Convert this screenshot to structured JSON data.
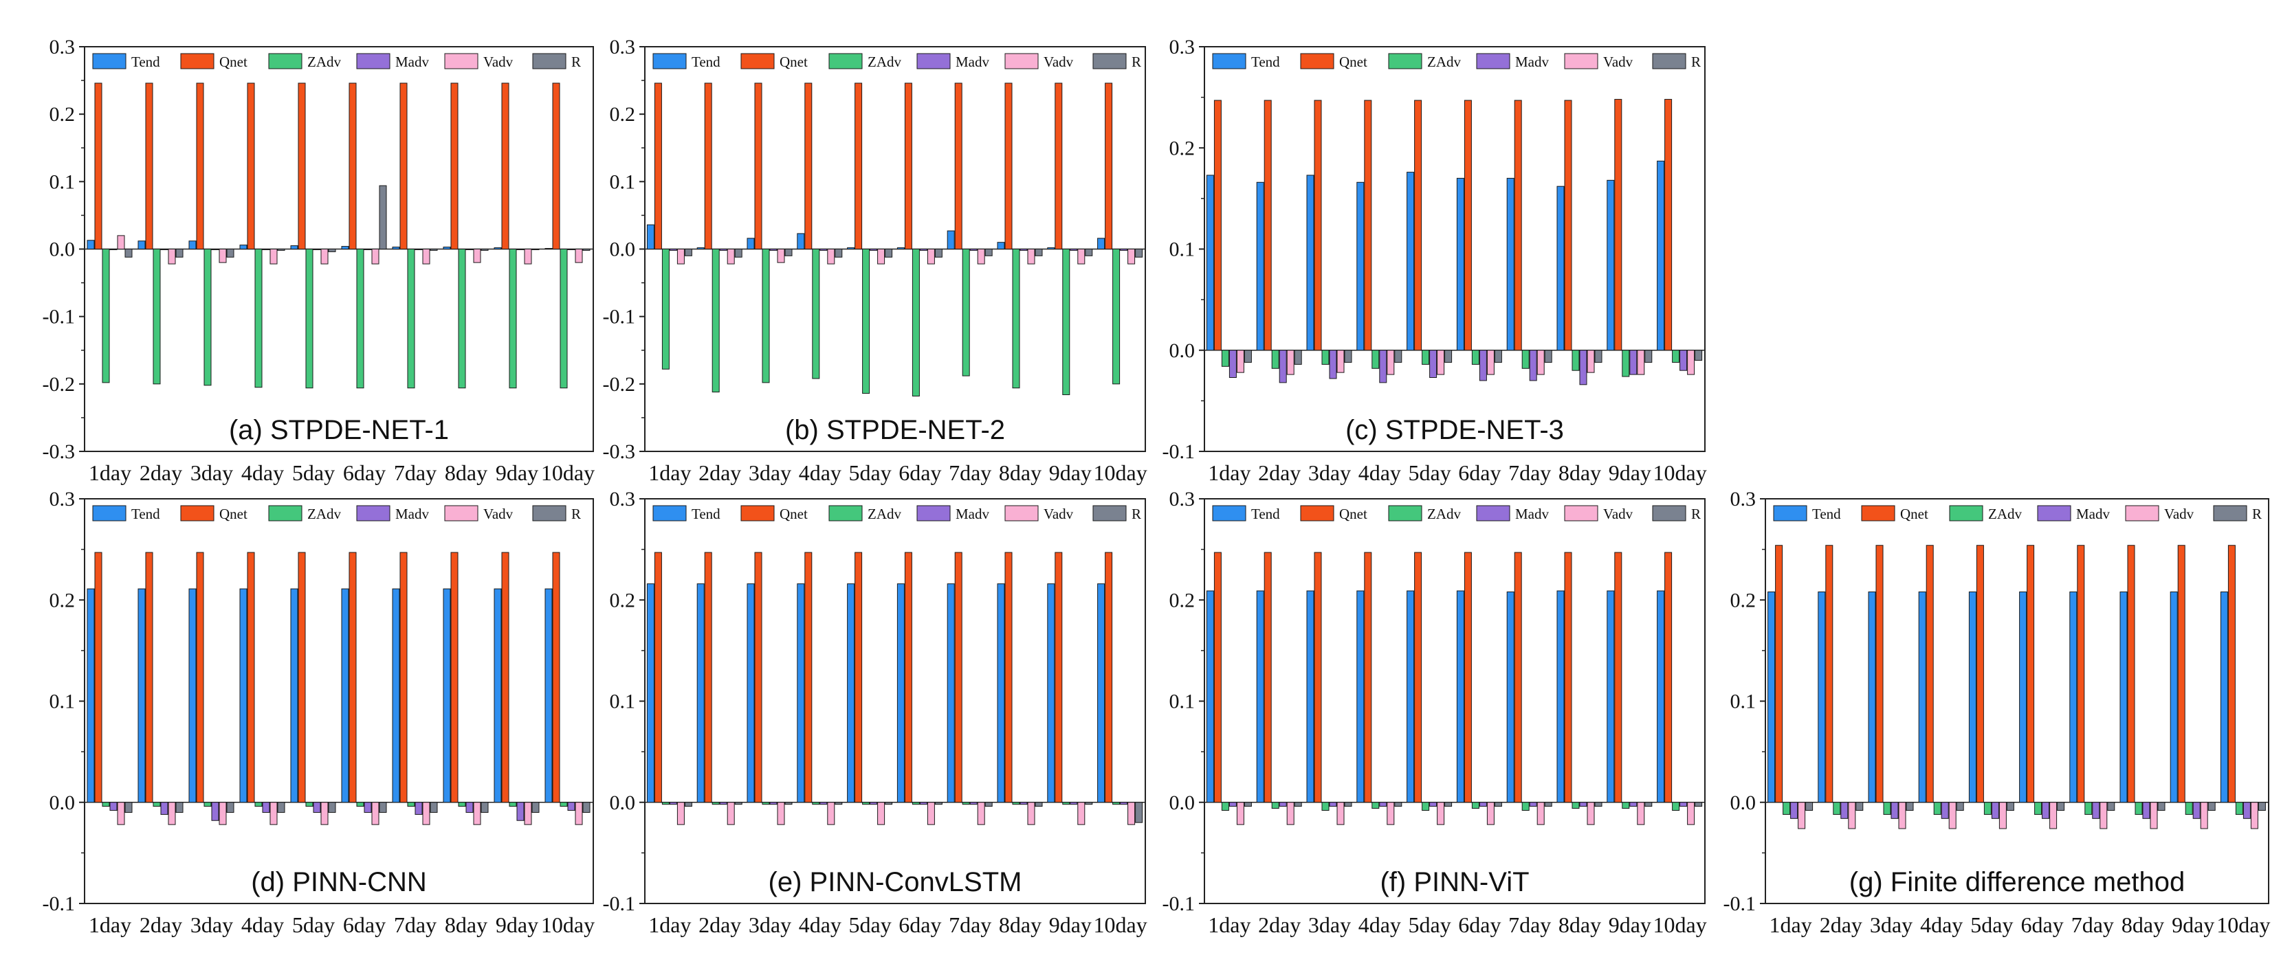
{
  "series_names": [
    "Tend",
    "Qnet",
    "ZAdv",
    "Madv",
    "Vadv",
    "R"
  ],
  "colors": {
    "Tend": "#2f8ff0",
    "Qnet": "#f2521a",
    "ZAdv": "#44c77c",
    "Madv": "#9470d8",
    "Vadv": "#f9b0d3",
    "R": "#7a8290"
  },
  "chart_data": [
    {
      "type": "bar",
      "title": "(a) STPDE-NET-1",
      "categories": [
        "1day",
        "2day",
        "3day",
        "4day",
        "5day",
        "6day",
        "7day",
        "8day",
        "9day",
        "10day"
      ],
      "ylim": [
        -0.3,
        0.3
      ],
      "yticks": [
        "-0.3",
        "-0.2",
        "-0.1",
        "0.0",
        "0.1",
        "0.2",
        "0.3"
      ],
      "series": [
        {
          "name": "Tend",
          "values": [
            0.013,
            0.012,
            0.012,
            0.006,
            0.005,
            0.004,
            0.003,
            0.003,
            0.002,
            0.001
          ]
        },
        {
          "name": "Qnet",
          "values": [
            0.246,
            0.246,
            0.246,
            0.246,
            0.246,
            0.246,
            0.246,
            0.246,
            0.246,
            0.246
          ]
        },
        {
          "name": "ZAdv",
          "values": [
            -0.198,
            -0.2,
            -0.202,
            -0.205,
            -0.206,
            -0.206,
            -0.206,
            -0.206,
            -0.206,
            -0.206
          ]
        },
        {
          "name": "Madv",
          "values": [
            -0.001,
            -0.001,
            -0.001,
            -0.001,
            -0.001,
            -0.001,
            -0.001,
            -0.001,
            -0.001,
            -0.001
          ]
        },
        {
          "name": "Vadv",
          "values": [
            0.02,
            -0.022,
            -0.02,
            -0.022,
            -0.022,
            -0.022,
            -0.022,
            -0.02,
            -0.022,
            -0.02
          ]
        },
        {
          "name": "R",
          "values": [
            -0.012,
            -0.012,
            -0.012,
            -0.002,
            -0.004,
            0.094,
            -0.002,
            -0.002,
            -0.001,
            -0.002
          ]
        }
      ]
    },
    {
      "type": "bar",
      "title": "(b) STPDE-NET-2",
      "categories": [
        "1day",
        "2day",
        "3day",
        "4day",
        "5day",
        "6day",
        "7day",
        "8day",
        "9day",
        "10day"
      ],
      "ylim": [
        -0.3,
        0.3
      ],
      "yticks": [
        "-0.3",
        "-0.2",
        "-0.1",
        "0.0",
        "0.1",
        "0.2",
        "0.3"
      ],
      "series": [
        {
          "name": "Tend",
          "values": [
            0.036,
            0.002,
            0.016,
            0.023,
            0.002,
            0.002,
            0.027,
            0.01,
            0.002,
            0.016
          ]
        },
        {
          "name": "Qnet",
          "values": [
            0.246,
            0.246,
            0.246,
            0.246,
            0.246,
            0.246,
            0.246,
            0.246,
            0.246,
            0.246
          ]
        },
        {
          "name": "ZAdv",
          "values": [
            -0.178,
            -0.212,
            -0.198,
            -0.192,
            -0.214,
            -0.218,
            -0.188,
            -0.206,
            -0.216,
            -0.2
          ]
        },
        {
          "name": "Madv",
          "values": [
            -0.002,
            -0.002,
            -0.002,
            -0.002,
            -0.002,
            -0.002,
            -0.002,
            -0.002,
            -0.002,
            -0.002
          ]
        },
        {
          "name": "Vadv",
          "values": [
            -0.022,
            -0.022,
            -0.02,
            -0.022,
            -0.022,
            -0.022,
            -0.022,
            -0.022,
            -0.022,
            -0.022
          ]
        },
        {
          "name": "R",
          "values": [
            -0.01,
            -0.012,
            -0.01,
            -0.012,
            -0.012,
            -0.012,
            -0.01,
            -0.01,
            -0.01,
            -0.012
          ]
        }
      ]
    },
    {
      "type": "bar",
      "title": "(c) STPDE-NET-3",
      "categories": [
        "1day",
        "2day",
        "3day",
        "4day",
        "5day",
        "6day",
        "7day",
        "8day",
        "9day",
        "10day"
      ],
      "ylim": [
        -0.1,
        0.3
      ],
      "yticks": [
        "-0.1",
        "0.0",
        "0.1",
        "0.2",
        "0.3"
      ],
      "series": [
        {
          "name": "Tend",
          "values": [
            0.173,
            0.166,
            0.173,
            0.166,
            0.176,
            0.17,
            0.17,
            0.162,
            0.168,
            0.187
          ]
        },
        {
          "name": "Qnet",
          "values": [
            0.247,
            0.247,
            0.247,
            0.247,
            0.247,
            0.247,
            0.247,
            0.247,
            0.248,
            0.248
          ]
        },
        {
          "name": "ZAdv",
          "values": [
            -0.016,
            -0.018,
            -0.014,
            -0.018,
            -0.014,
            -0.014,
            -0.018,
            -0.02,
            -0.026,
            -0.012
          ]
        },
        {
          "name": "Madv",
          "values": [
            -0.027,
            -0.032,
            -0.028,
            -0.032,
            -0.027,
            -0.03,
            -0.03,
            -0.034,
            -0.024,
            -0.02
          ]
        },
        {
          "name": "Vadv",
          "values": [
            -0.022,
            -0.024,
            -0.022,
            -0.024,
            -0.024,
            -0.024,
            -0.024,
            -0.022,
            -0.024,
            -0.024
          ]
        },
        {
          "name": "R",
          "values": [
            -0.012,
            -0.014,
            -0.012,
            -0.012,
            -0.012,
            -0.012,
            -0.012,
            -0.012,
            -0.012,
            -0.01
          ]
        }
      ]
    },
    {
      "type": "bar",
      "title": "(d) PINN-CNN",
      "categories": [
        "1day",
        "2day",
        "3day",
        "4day",
        "5day",
        "6day",
        "7day",
        "8day",
        "9day",
        "10day"
      ],
      "ylim": [
        -0.1,
        0.3
      ],
      "yticks": [
        "-0.1",
        "0.0",
        "0.1",
        "0.2",
        "0.3"
      ],
      "series": [
        {
          "name": "Tend",
          "values": [
            0.211,
            0.211,
            0.211,
            0.211,
            0.211,
            0.211,
            0.211,
            0.211,
            0.211,
            0.211
          ]
        },
        {
          "name": "Qnet",
          "values": [
            0.247,
            0.247,
            0.247,
            0.247,
            0.247,
            0.247,
            0.247,
            0.247,
            0.247,
            0.247
          ]
        },
        {
          "name": "ZAdv",
          "values": [
            -0.004,
            -0.004,
            -0.004,
            -0.004,
            -0.004,
            -0.004,
            -0.004,
            -0.004,
            -0.004,
            -0.004
          ]
        },
        {
          "name": "Madv",
          "values": [
            -0.008,
            -0.012,
            -0.018,
            -0.01,
            -0.01,
            -0.01,
            -0.012,
            -0.01,
            -0.018,
            -0.008
          ]
        },
        {
          "name": "Vadv",
          "values": [
            -0.022,
            -0.022,
            -0.022,
            -0.022,
            -0.022,
            -0.022,
            -0.022,
            -0.022,
            -0.022,
            -0.022
          ]
        },
        {
          "name": "R",
          "values": [
            -0.01,
            -0.01,
            -0.01,
            -0.01,
            -0.01,
            -0.01,
            -0.01,
            -0.01,
            -0.01,
            -0.01
          ]
        }
      ]
    },
    {
      "type": "bar",
      "title": "(e) PINN-ConvLSTM",
      "categories": [
        "1day",
        "2day",
        "3day",
        "4day",
        "5day",
        "6day",
        "7day",
        "8day",
        "9day",
        "10day"
      ],
      "ylim": [
        -0.1,
        0.3
      ],
      "yticks": [
        "-0.1",
        "0.0",
        "0.1",
        "0.2",
        "0.3"
      ],
      "series": [
        {
          "name": "Tend",
          "values": [
            0.216,
            0.216,
            0.216,
            0.216,
            0.216,
            0.216,
            0.216,
            0.216,
            0.216,
            0.216
          ]
        },
        {
          "name": "Qnet",
          "values": [
            0.247,
            0.247,
            0.247,
            0.247,
            0.247,
            0.247,
            0.247,
            0.247,
            0.247,
            0.247
          ]
        },
        {
          "name": "ZAdv",
          "values": [
            -0.002,
            -0.002,
            -0.002,
            -0.002,
            -0.002,
            -0.002,
            -0.002,
            -0.002,
            -0.002,
            -0.002
          ]
        },
        {
          "name": "Madv",
          "values": [
            -0.002,
            -0.002,
            -0.002,
            -0.002,
            -0.002,
            -0.002,
            -0.002,
            -0.002,
            -0.002,
            -0.002
          ]
        },
        {
          "name": "Vadv",
          "values": [
            -0.022,
            -0.022,
            -0.022,
            -0.022,
            -0.022,
            -0.022,
            -0.022,
            -0.022,
            -0.022,
            -0.022
          ]
        },
        {
          "name": "R",
          "values": [
            -0.004,
            -0.002,
            -0.002,
            -0.002,
            -0.002,
            -0.002,
            -0.004,
            -0.004,
            -0.002,
            -0.02
          ]
        }
      ]
    },
    {
      "type": "bar",
      "title": "(f) PINN-ViT",
      "categories": [
        "1day",
        "2day",
        "3day",
        "4day",
        "5day",
        "6day",
        "7day",
        "8day",
        "9day",
        "10day"
      ],
      "ylim": [
        -0.1,
        0.3
      ],
      "yticks": [
        "-0.1",
        "0.0",
        "0.1",
        "0.2",
        "0.3"
      ],
      "series": [
        {
          "name": "Tend",
          "values": [
            0.209,
            0.209,
            0.209,
            0.209,
            0.209,
            0.209,
            0.208,
            0.209,
            0.209,
            0.209
          ]
        },
        {
          "name": "Qnet",
          "values": [
            0.247,
            0.247,
            0.247,
            0.247,
            0.247,
            0.247,
            0.247,
            0.247,
            0.247,
            0.247
          ]
        },
        {
          "name": "ZAdv",
          "values": [
            -0.008,
            -0.006,
            -0.008,
            -0.006,
            -0.008,
            -0.006,
            -0.008,
            -0.006,
            -0.006,
            -0.008
          ]
        },
        {
          "name": "Madv",
          "values": [
            -0.004,
            -0.004,
            -0.004,
            -0.004,
            -0.004,
            -0.004,
            -0.004,
            -0.004,
            -0.004,
            -0.004
          ]
        },
        {
          "name": "Vadv",
          "values": [
            -0.022,
            -0.022,
            -0.022,
            -0.022,
            -0.022,
            -0.022,
            -0.022,
            -0.022,
            -0.022,
            -0.022
          ]
        },
        {
          "name": "R",
          "values": [
            -0.004,
            -0.004,
            -0.004,
            -0.004,
            -0.004,
            -0.004,
            -0.004,
            -0.004,
            -0.004,
            -0.004
          ]
        }
      ]
    },
    {
      "type": "bar",
      "title": "(g) Finite difference method",
      "categories": [
        "1day",
        "2day",
        "3day",
        "4day",
        "5day",
        "6day",
        "7day",
        "8day",
        "9day",
        "10day"
      ],
      "ylim": [
        -0.1,
        0.3
      ],
      "yticks": [
        "-0.1",
        "0.0",
        "0.1",
        "0.2",
        "0.3"
      ],
      "series": [
        {
          "name": "Tend",
          "values": [
            0.208,
            0.208,
            0.208,
            0.208,
            0.208,
            0.208,
            0.208,
            0.208,
            0.208,
            0.208
          ]
        },
        {
          "name": "Qnet",
          "values": [
            0.254,
            0.254,
            0.254,
            0.254,
            0.254,
            0.254,
            0.254,
            0.254,
            0.254,
            0.254
          ]
        },
        {
          "name": "ZAdv",
          "values": [
            -0.012,
            -0.012,
            -0.012,
            -0.012,
            -0.012,
            -0.012,
            -0.012,
            -0.012,
            -0.012,
            -0.012
          ]
        },
        {
          "name": "Madv",
          "values": [
            -0.016,
            -0.016,
            -0.016,
            -0.016,
            -0.016,
            -0.016,
            -0.016,
            -0.016,
            -0.016,
            -0.016
          ]
        },
        {
          "name": "Vadv",
          "values": [
            -0.026,
            -0.026,
            -0.026,
            -0.026,
            -0.026,
            -0.026,
            -0.026,
            -0.026,
            -0.026,
            -0.026
          ]
        },
        {
          "name": "R",
          "values": [
            -0.008,
            -0.008,
            -0.008,
            -0.008,
            -0.008,
            -0.008,
            -0.008,
            -0.008,
            -0.008,
            -0.008
          ]
        }
      ]
    }
  ]
}
